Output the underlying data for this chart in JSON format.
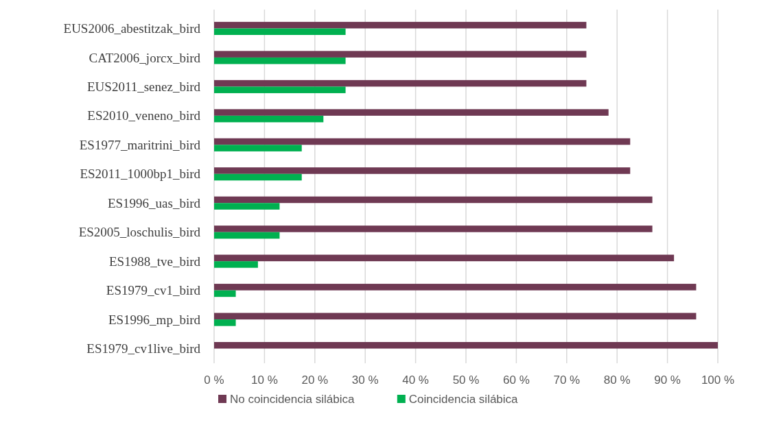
{
  "chart_data": {
    "type": "bar",
    "orientation": "horizontal",
    "categories": [
      "EUS2006_abestitzak_bird",
      "CAT2006_jorcx_bird",
      "EUS2011_senez_bird",
      "ES2010_veneno_bird",
      "ES1977_maritrini_bird",
      "ES2011_1000bp1_bird",
      "ES1996_uas_bird",
      "ES2005_loschulis_bird",
      "ES1988_tve_bird",
      "ES1979_cv1_bird",
      "ES1996_mp_bird",
      "ES1979_cv1live_bird"
    ],
    "series": [
      {
        "name": "No coincidencia silábica",
        "color": "#6f3953",
        "values": [
          73.9,
          73.9,
          73.9,
          78.3,
          82.6,
          82.6,
          87,
          87,
          91.3,
          95.7,
          95.7,
          100
        ]
      },
      {
        "name": "Coincidencia silábica",
        "color": "#00b050",
        "values": [
          26.1,
          26.1,
          26.1,
          21.7,
          17.4,
          17.4,
          13,
          13,
          8.7,
          4.3,
          4.3,
          0
        ]
      }
    ],
    "xlim": [
      0,
      100
    ],
    "xticks": [
      {
        "value": 0,
        "label": "0 %"
      },
      {
        "value": 10,
        "label": "10 %"
      },
      {
        "value": 20,
        "label": "20 %"
      },
      {
        "value": 30,
        "label": "30 %"
      },
      {
        "value": 40,
        "label": "40 %"
      },
      {
        "value": 50,
        "label": "50 %"
      },
      {
        "value": 60,
        "label": "60 %"
      },
      {
        "value": 70,
        "label": "70 %"
      },
      {
        "value": 80,
        "label": "80 %"
      },
      {
        "value": 90,
        "label": "90 %"
      },
      {
        "value": 100,
        "label": "100 %"
      }
    ],
    "grid": "x",
    "legend": "bottom"
  }
}
